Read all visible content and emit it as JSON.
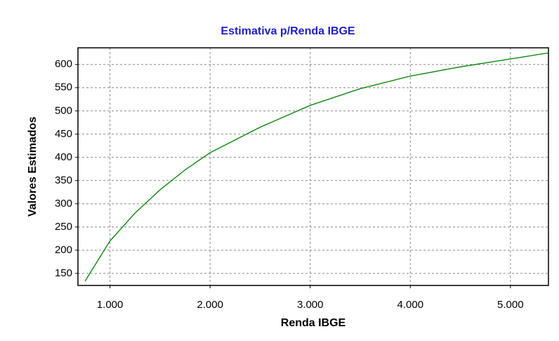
{
  "chart_data": {
    "type": "line",
    "title": "Estimativa p/Renda IBGE",
    "x_label": "Renda IBGE",
    "y_label": "Valores Estimados",
    "x": [
      750,
      1000,
      1250,
      1500,
      1750,
      2000,
      2500,
      3000,
      3500,
      4000,
      4500,
      5000,
      5380
    ],
    "values": [
      133,
      220,
      280,
      330,
      373,
      410,
      465,
      512,
      548,
      575,
      595,
      612,
      625
    ],
    "color": "#008000",
    "xlim": [
      680,
      5380
    ],
    "xticks": [
      {
        "value": 1000,
        "label": "1.000"
      },
      {
        "value": 2000,
        "label": "2.000"
      },
      {
        "value": 3000,
        "label": "3.000"
      },
      {
        "value": 4000,
        "label": "4.000"
      },
      {
        "value": 5000,
        "label": "5.000"
      }
    ],
    "ylim": [
      124,
      636
    ],
    "yticks": [
      150,
      200,
      250,
      300,
      350,
      400,
      450,
      500,
      550,
      600
    ],
    "grid": true
  }
}
